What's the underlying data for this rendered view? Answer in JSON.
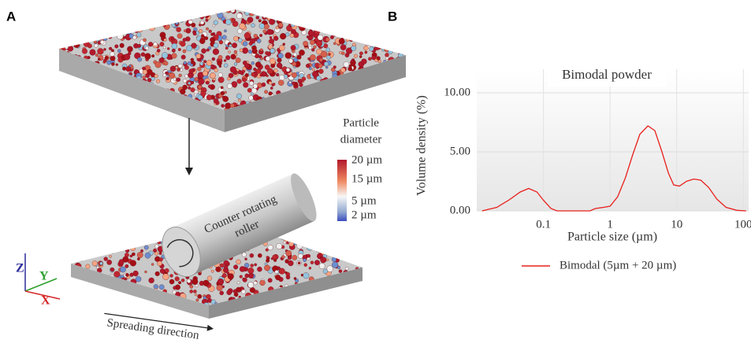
{
  "panel_a": {
    "label": "A",
    "roller_label": [
      "Counter rotating",
      "roller"
    ],
    "spreading_label": "Spreading direction",
    "axes": [
      "Z",
      "Y",
      "X"
    ],
    "colorbar": {
      "title": [
        "Particle",
        "diameter"
      ],
      "labels": [
        "20 µm",
        "15 µm",
        "5 µm",
        "2 µm"
      ]
    }
  },
  "panel_b": {
    "label": "B"
  },
  "chart_data": {
    "type": "line",
    "title": "Bimodal powder",
    "xlabel": "Particle size (µm)",
    "ylabel": "Volume density (%)",
    "xscale": "log",
    "grid": true,
    "xlim": [
      0.01,
      120
    ],
    "xticks": [
      0.1,
      1,
      10,
      100
    ],
    "ylim": [
      0,
      12
    ],
    "yticks": [
      {
        "value": 0,
        "label": "0.00"
      },
      {
        "value": 5,
        "label": "5.00"
      },
      {
        "value": 10,
        "label": "10.00"
      }
    ],
    "x": [
      0.012,
      0.02,
      0.03,
      0.045,
      0.06,
      0.08,
      0.1,
      0.13,
      0.16,
      0.3,
      0.5,
      0.6,
      0.8,
      1.0,
      1.3,
      1.7,
      2.2,
      2.8,
      3.7,
      4.7,
      6,
      7.5,
      9,
      11,
      14,
      18,
      23,
      30,
      40,
      55,
      80,
      110
    ],
    "series": [
      {
        "name": "Bimodal (5µm + 20 µm)",
        "color": "#e8201c",
        "values": [
          0,
          0.3,
          0.9,
          1.6,
          1.9,
          1.6,
          0.9,
          0.2,
          0,
          0,
          0,
          0.2,
          0.3,
          0.4,
          1.2,
          2.8,
          4.8,
          6.5,
          7.2,
          6.8,
          5,
          3.2,
          2.2,
          2.1,
          2.5,
          2.7,
          2.6,
          2,
          1,
          0.3,
          0.05,
          0
        ]
      }
    ]
  }
}
